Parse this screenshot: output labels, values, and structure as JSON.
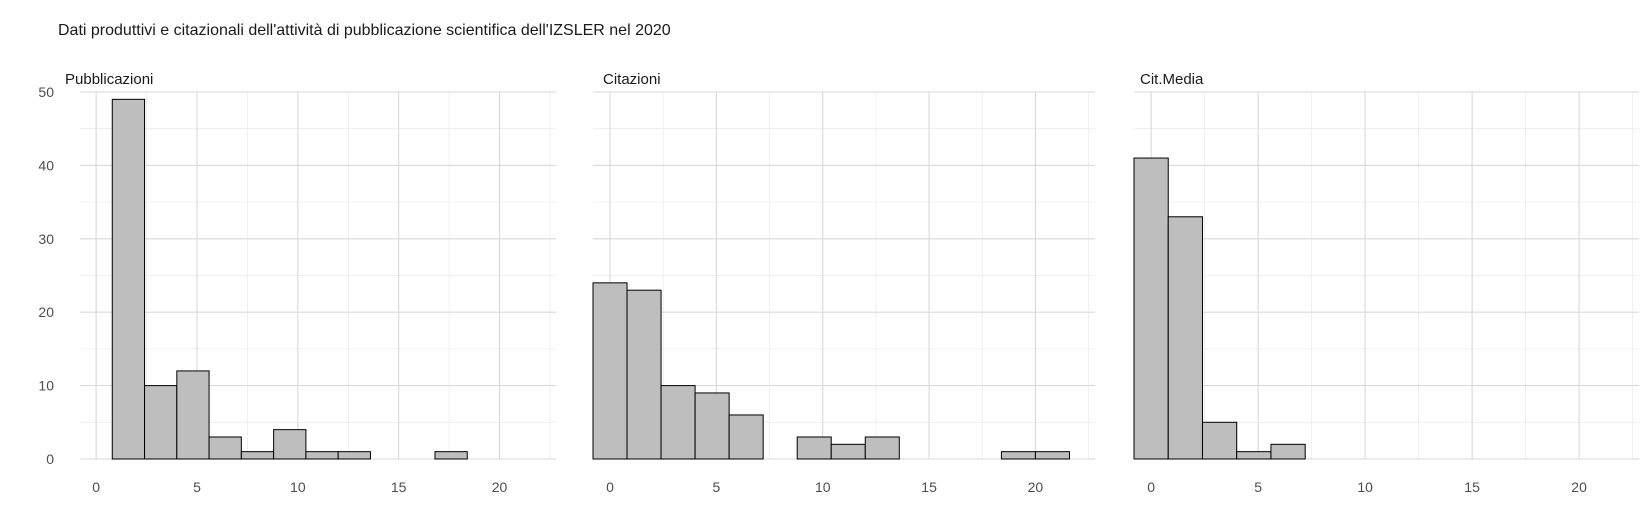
{
  "title": "Dati produttivi e citazionali dell'attività di pubblicazione scientifica dell'IZSLER nel 2020",
  "colors": {
    "bar_fill": "#bebebe",
    "bar_stroke": "#000000",
    "grid": "#d9d9d9",
    "text": "#4d4d4d",
    "panel_title": "#1a1a1a"
  },
  "chart_data": [
    {
      "type": "bar",
      "title": "Pubblicazioni",
      "bin_width": 1.6,
      "xlim": [
        -0.8,
        22.8
      ],
      "ylim": [
        0,
        50
      ],
      "x_ticks": [
        0,
        5,
        10,
        15,
        20
      ],
      "y_ticks": [
        0,
        10,
        20,
        30,
        40,
        50
      ],
      "bin_starts": [
        0.8,
        2.4,
        4.0,
        5.6,
        7.2,
        8.8,
        10.4,
        12.0,
        13.6,
        15.2,
        16.8,
        18.4,
        20.0,
        21.6
      ],
      "values": [
        49,
        10,
        12,
        3,
        1,
        4,
        1,
        1,
        0,
        0,
        1,
        0,
        0,
        0
      ],
      "grid": true
    },
    {
      "type": "bar",
      "title": "Citazioni",
      "bin_width": 1.6,
      "xlim": [
        -0.8,
        22.8
      ],
      "ylim": [
        0,
        50
      ],
      "x_ticks": [
        0,
        5,
        10,
        15,
        20
      ],
      "y_ticks": [
        0,
        10,
        20,
        30,
        40,
        50
      ],
      "bin_starts": [
        -0.8,
        0.8,
        2.4,
        4.0,
        5.6,
        7.2,
        8.8,
        10.4,
        12.0,
        13.6,
        15.2,
        16.8,
        18.4,
        20.0
      ],
      "values": [
        24,
        23,
        10,
        9,
        6,
        0,
        3,
        2,
        3,
        0,
        0,
        0,
        1,
        1
      ],
      "grid": true
    },
    {
      "type": "bar",
      "title": "Cit.Media",
      "bin_width": 1.6,
      "xlim": [
        -0.8,
        22.8
      ],
      "ylim": [
        0,
        50
      ],
      "x_ticks": [
        0,
        5,
        10,
        15,
        20
      ],
      "y_ticks": [
        0,
        10,
        20,
        30,
        40,
        50
      ],
      "bin_starts": [
        -0.8,
        0.8,
        2.4,
        4.0,
        5.6,
        7.2,
        8.8,
        10.4,
        12.0,
        13.6,
        15.2,
        16.8,
        18.4,
        20.0,
        21.6
      ],
      "values": [
        41,
        33,
        5,
        1,
        2,
        0,
        0,
        0,
        0,
        0,
        0,
        0,
        0,
        0,
        0
      ],
      "grid": true
    }
  ]
}
